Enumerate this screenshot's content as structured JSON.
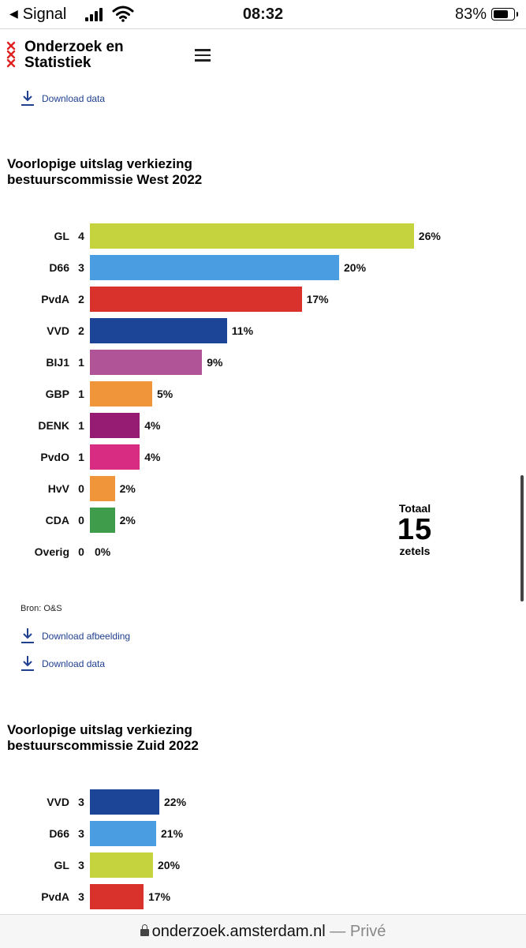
{
  "statusbar": {
    "back_label": "Signal",
    "time": "08:32",
    "battery": "83%"
  },
  "header": {
    "brand_line1": "Onderzoek en",
    "brand_line2": "Statistiek"
  },
  "links": {
    "download_data": "Download data",
    "download_afbeelding": "Download afbeelding"
  },
  "source": "Bron: O&S",
  "url": {
    "host": "onderzoek.amsterdam.nl",
    "suffix": "— Privé"
  },
  "chart_data": [
    {
      "type": "bar",
      "title_line1": "Voorlopige uitslag verkiezing",
      "title_line2": "bestuurscommissie West 2022",
      "categories": [
        "GL",
        "D66",
        "PvdA",
        "VVD",
        "BIJ1",
        "GBP",
        "DENK",
        "PvdO",
        "HvV",
        "CDA",
        "Overig"
      ],
      "seats": [
        4,
        3,
        2,
        2,
        1,
        1,
        1,
        1,
        0,
        0,
        0
      ],
      "values": [
        26,
        20,
        17,
        11,
        9,
        5,
        4,
        4,
        2,
        2,
        0
      ],
      "labels": [
        "26%",
        "20%",
        "17%",
        "11%",
        "9%",
        "5%",
        "4%",
        "4%",
        "2%",
        "2%",
        "0%"
      ],
      "colors": [
        "#c4d33e",
        "#4a9de0",
        "#d9312b",
        "#1c4597",
        "#b05397",
        "#f0953a",
        "#961b73",
        "#d82b82",
        "#f0953a",
        "#3f9c4a",
        "#cccccc"
      ],
      "total_label": "Totaal",
      "total_value": "15",
      "total_unit": "zetels"
    },
    {
      "type": "bar",
      "title_line1": "Voorlopige uitslag verkiezing",
      "title_line2": "bestuurscommissie Zuid 2022",
      "categories": [
        "VVD",
        "D66",
        "GL",
        "PvdA"
      ],
      "seats": [
        3,
        3,
        3,
        3
      ],
      "values": [
        22,
        21,
        20,
        17
      ],
      "labels": [
        "22%",
        "21%",
        "20%",
        "17%"
      ],
      "colors": [
        "#1c4597",
        "#4a9de0",
        "#c4d33e",
        "#d9312b"
      ]
    }
  ]
}
